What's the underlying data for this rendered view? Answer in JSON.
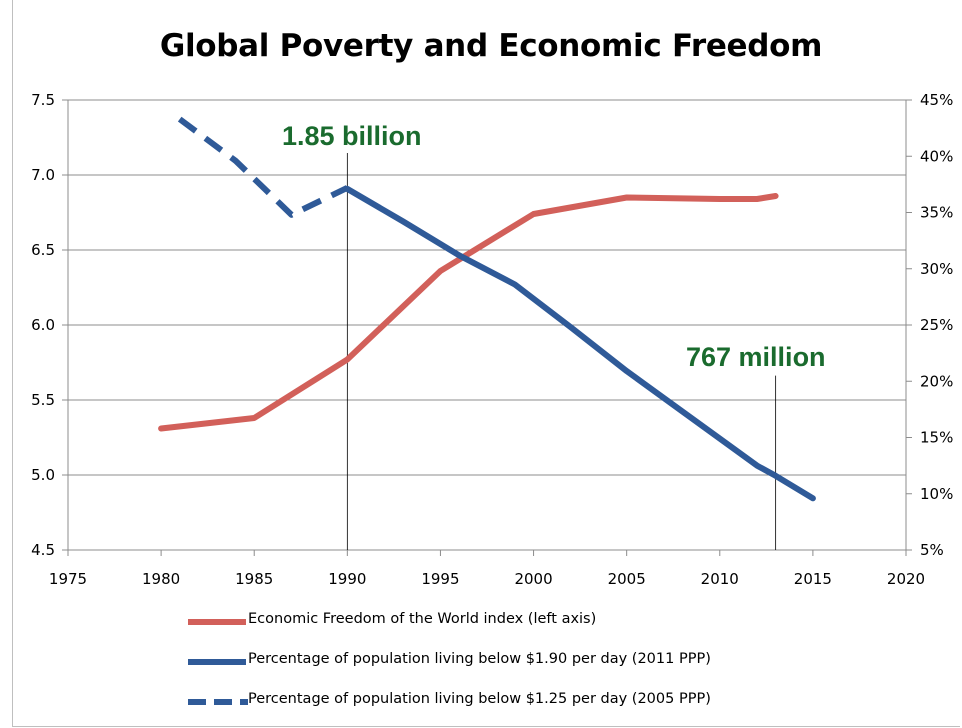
{
  "chart_data": {
    "type": "line",
    "title": "Global Poverty and Economic Freedom",
    "x_ticks": [
      "1975",
      "1980",
      "1985",
      "1990",
      "1995",
      "2000",
      "2005",
      "2010",
      "2015",
      "2020"
    ],
    "xlim": [
      1975,
      2020
    ],
    "y_left": {
      "lim": [
        4.5,
        7.5
      ],
      "ticks": [
        "4.5",
        "5.0",
        "5.5",
        "6.0",
        "6.5",
        "7.0",
        "7.5"
      ]
    },
    "y_right": {
      "lim": [
        5,
        45
      ],
      "ticks": [
        "5%",
        "10%",
        "15%",
        "20%",
        "25%",
        "30%",
        "35%",
        "40%",
        "45%"
      ]
    },
    "grid": "horizontal",
    "legend_position": "bottom",
    "series": [
      {
        "name": "Economic Freedom of the World index (left axis)",
        "axis": "left",
        "color": "#d2605a",
        "style": "solid",
        "points": [
          [
            1980,
            5.31
          ],
          [
            1985,
            5.38
          ],
          [
            1990,
            5.77
          ],
          [
            1995,
            6.36
          ],
          [
            2000,
            6.74
          ],
          [
            2005,
            6.85
          ],
          [
            2010,
            6.84
          ],
          [
            2012,
            6.84
          ],
          [
            2013,
            6.86
          ]
        ]
      },
      {
        "name": "Percentage of population living below $1.90 per day (2011 PPP)",
        "axis": "right",
        "color": "#2f5a98",
        "style": "solid",
        "points": [
          [
            1990,
            37.1
          ],
          [
            1993,
            34.2
          ],
          [
            1996,
            31.2
          ],
          [
            1999,
            28.6
          ],
          [
            2002,
            24.8
          ],
          [
            2005,
            20.9
          ],
          [
            2008,
            17.3
          ],
          [
            2011,
            13.7
          ],
          [
            2012,
            12.5
          ],
          [
            2013,
            11.6
          ],
          [
            2015,
            9.6
          ]
        ]
      },
      {
        "name": "Percentage of population living below $1.25 per day (2005 PPP)",
        "axis": "right",
        "color": "#2f5a98",
        "style": "dashed",
        "points": [
          [
            1981,
            43.3
          ],
          [
            1984,
            39.6
          ],
          [
            1987,
            34.8
          ],
          [
            1990,
            37.2
          ]
        ]
      }
    ],
    "annotations": [
      {
        "text": "1.85 billion",
        "x": 1990,
        "y_top": 40.9,
        "y_bottom": 5
      },
      {
        "text": "767 million",
        "x": 2013,
        "y_top": 20.5,
        "y_bottom": 5
      }
    ]
  }
}
